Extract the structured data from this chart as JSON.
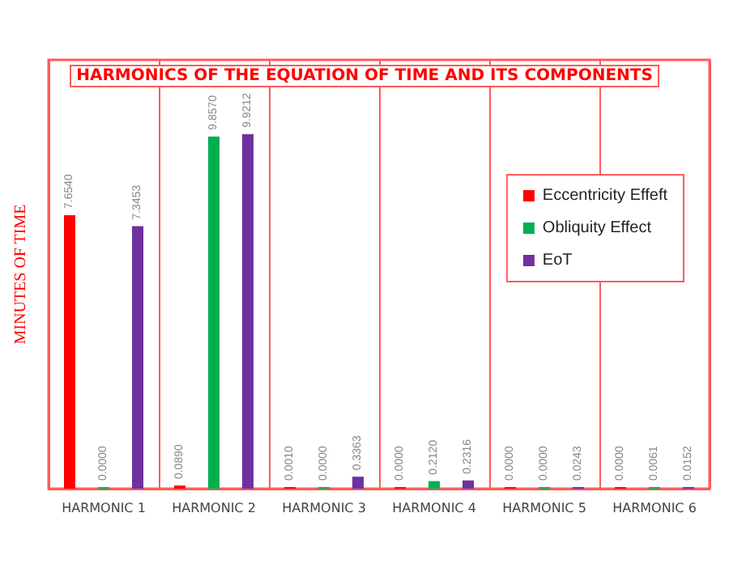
{
  "chart_data": {
    "type": "bar",
    "title": "HARMONICS OF THE EQUATION OF TIME AND ITS COMPONENTS",
    "ylabel": "MINUTES OF TIME",
    "categories": [
      "HARMONIC 1",
      "HARMONIC 2",
      "HARMONIC 3",
      "HARMONIC 4",
      "HARMONIC 5",
      "HARMONIC 6"
    ],
    "series": [
      {
        "name": "Eccentricity Effeft",
        "color": "#ff0000",
        "values": [
          7.654,
          0.089,
          0.001,
          0,
          0,
          0
        ],
        "value_labels": [
          "7.6540",
          "0.0890",
          "0.0010",
          "0.0000",
          "0.0000",
          "0.0000"
        ]
      },
      {
        "name": "Obliquity Effect",
        "color": "#00b050",
        "values": [
          0,
          9.857,
          0,
          0.212,
          0,
          0.0061
        ],
        "value_labels": [
          "0.0000",
          "9.8570",
          "0.0000",
          "0.2120",
          "0.0000",
          "0.0061"
        ]
      },
      {
        "name": "EoT",
        "color": "#7030a0",
        "values": [
          7.3453,
          9.9212,
          0.3363,
          0.2316,
          0.0243,
          0.0152
        ],
        "value_labels": [
          "7.3453",
          "9.9212",
          "0.3363",
          "0.2316",
          "0.0243",
          "0.0152"
        ]
      }
    ],
    "ylim": [
      0,
      12
    ],
    "tick_labels": "x",
    "grid": "x",
    "legend": "right"
  }
}
